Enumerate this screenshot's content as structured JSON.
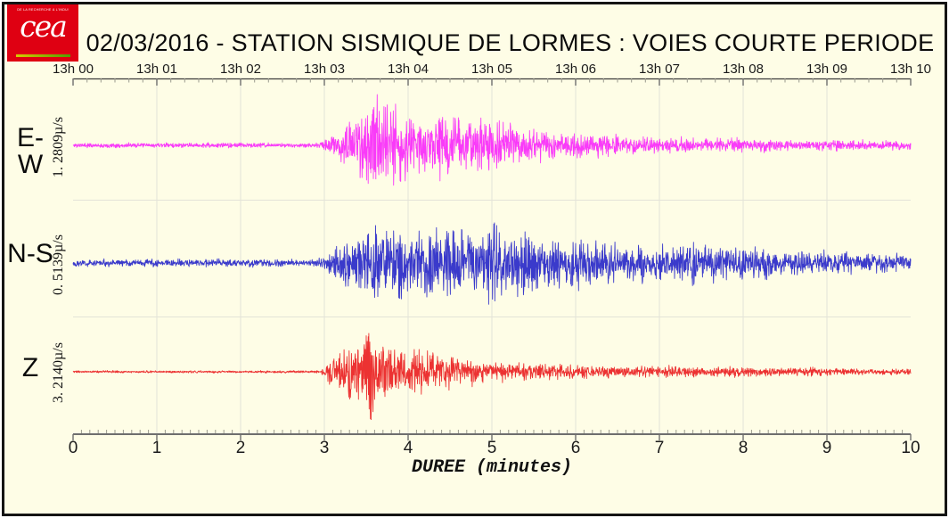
{
  "logo": {
    "wordmark": "cea",
    "tagline": "DE LA RECHERCHE À L'INDUSTRIE",
    "bg_color": "#DF0012",
    "underline_colors": [
      "#D9C900",
      "#4F9E00"
    ]
  },
  "chart_data": {
    "type": "line",
    "subtype": "seismogram-3-component",
    "title": "02/03/2016  -  STATION SISMIQUE DE LORMES : VOIES COURTE PERIODE",
    "station": "LORMES",
    "date": "02/03/2016",
    "xlabel": "DUREE (minutes)",
    "x_unit": "minutes",
    "x_range": [
      0,
      10
    ],
    "time_axis_ticks": [
      "13h 00",
      "13h 01",
      "13h 02",
      "13h 03",
      "13h 04",
      "13h 05",
      "13h 06",
      "13h 07",
      "13h 08",
      "13h 09",
      "13h 10"
    ],
    "time_minor_tick_seconds": 10,
    "duration_axis_ticks": [
      "0",
      "1",
      "2",
      "3",
      "4",
      "5",
      "6",
      "7",
      "8",
      "9",
      "10"
    ],
    "duration_minor_tick_minutes": 0.1,
    "grid": true,
    "background_color": "#FEFDE6",
    "grid_color": "#E3E3D8",
    "axis_color": "#3C3C3C",
    "event_onset_minutes": 3.05,
    "series": [
      {
        "name": "E-W",
        "scale_label": "1. 2809µ/s",
        "color": "#F93BF9",
        "envelope_t_amp": [
          [
            0,
            3
          ],
          [
            2.95,
            3
          ],
          [
            3.05,
            10
          ],
          [
            3.15,
            22
          ],
          [
            3.3,
            32
          ],
          [
            3.45,
            42
          ],
          [
            3.6,
            52
          ],
          [
            3.7,
            62
          ],
          [
            3.78,
            71
          ],
          [
            3.85,
            52
          ],
          [
            3.95,
            40
          ],
          [
            4.1,
            31
          ],
          [
            4.3,
            39
          ],
          [
            4.45,
            43
          ],
          [
            4.6,
            33
          ],
          [
            4.75,
            39
          ],
          [
            4.9,
            31
          ],
          [
            5.0,
            42
          ],
          [
            5.15,
            28
          ],
          [
            5.35,
            24
          ],
          [
            5.6,
            19
          ],
          [
            5.9,
            16
          ],
          [
            6.2,
            14
          ],
          [
            6.6,
            12
          ],
          [
            7.0,
            10
          ],
          [
            7.4,
            9
          ],
          [
            7.8,
            10
          ],
          [
            8.2,
            8
          ],
          [
            8.6,
            7
          ],
          [
            9.0,
            7
          ],
          [
            9.5,
            6
          ],
          [
            10,
            5
          ]
        ]
      },
      {
        "name": "N-S",
        "scale_label": "0. 5139µ/s",
        "color": "#3A3ACB",
        "envelope_t_amp": [
          [
            0,
            4.5
          ],
          [
            2.9,
            4.5
          ],
          [
            3.05,
            12
          ],
          [
            3.2,
            26
          ],
          [
            3.35,
            38
          ],
          [
            3.5,
            46
          ],
          [
            3.65,
            40
          ],
          [
            3.8,
            46
          ],
          [
            3.95,
            42
          ],
          [
            4.1,
            38
          ],
          [
            4.25,
            48
          ],
          [
            4.4,
            42
          ],
          [
            4.55,
            52
          ],
          [
            4.7,
            44
          ],
          [
            4.85,
            40
          ],
          [
            4.98,
            66
          ],
          [
            5.08,
            46
          ],
          [
            5.25,
            40
          ],
          [
            5.45,
            43
          ],
          [
            5.6,
            36
          ],
          [
            5.8,
            34
          ],
          [
            6.0,
            32
          ],
          [
            6.2,
            28
          ],
          [
            6.5,
            26
          ],
          [
            6.8,
            24
          ],
          [
            7.1,
            22
          ],
          [
            7.4,
            24
          ],
          [
            7.7,
            21
          ],
          [
            8.0,
            23
          ],
          [
            8.3,
            19
          ],
          [
            8.6,
            16
          ],
          [
            9.0,
            14
          ],
          [
            9.4,
            12
          ],
          [
            10,
            11
          ]
        ]
      },
      {
        "name": "Z",
        "scale_label": "3. 2140µ/s",
        "color": "#EC3232",
        "envelope_t_amp": [
          [
            0,
            1.5
          ],
          [
            2.95,
            1.5
          ],
          [
            3.02,
            8
          ],
          [
            3.08,
            18
          ],
          [
            3.15,
            25
          ],
          [
            3.25,
            32
          ],
          [
            3.35,
            42
          ],
          [
            3.45,
            50
          ],
          [
            3.55,
            65
          ],
          [
            3.65,
            45
          ],
          [
            3.75,
            36
          ],
          [
            3.85,
            30
          ],
          [
            4.0,
            26
          ],
          [
            4.15,
            30
          ],
          [
            4.3,
            25
          ],
          [
            4.5,
            21
          ],
          [
            4.7,
            18
          ],
          [
            4.9,
            15
          ],
          [
            5.1,
            13
          ],
          [
            5.4,
            11
          ],
          [
            5.7,
            10
          ],
          [
            6.0,
            9
          ],
          [
            6.4,
            8
          ],
          [
            6.8,
            7
          ],
          [
            7.2,
            7
          ],
          [
            7.6,
            6
          ],
          [
            8.0,
            6
          ],
          [
            8.5,
            5
          ],
          [
            9.0,
            5
          ],
          [
            9.5,
            4
          ],
          [
            10,
            4
          ]
        ]
      }
    ]
  }
}
